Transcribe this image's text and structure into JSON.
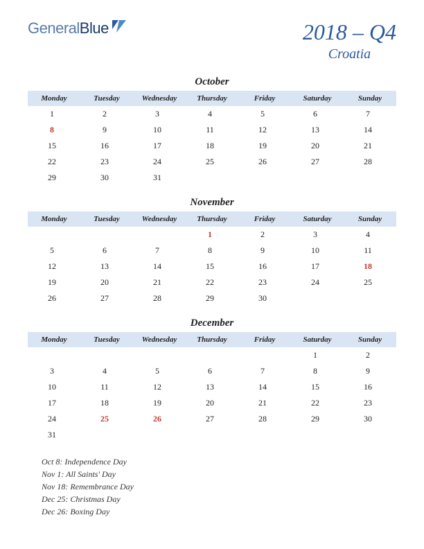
{
  "logo": {
    "part1": "General",
    "part2": "Blue"
  },
  "quarter": "2018 – Q4",
  "country": "Croatia",
  "colors": {
    "header_bg": "#dae5f3",
    "accent": "#2c5a9c",
    "holiday": "#c0392b",
    "text": "#222222",
    "background": "#ffffff"
  },
  "day_headers": [
    "Monday",
    "Tuesday",
    "Wednesday",
    "Thursday",
    "Friday",
    "Saturday",
    "Sunday"
  ],
  "months": [
    {
      "name": "October",
      "weeks": [
        [
          {
            "d": "1"
          },
          {
            "d": "2"
          },
          {
            "d": "3"
          },
          {
            "d": "4"
          },
          {
            "d": "5"
          },
          {
            "d": "6"
          },
          {
            "d": "7"
          }
        ],
        [
          {
            "d": "8",
            "h": true
          },
          {
            "d": "9"
          },
          {
            "d": "10"
          },
          {
            "d": "11"
          },
          {
            "d": "12"
          },
          {
            "d": "13"
          },
          {
            "d": "14"
          }
        ],
        [
          {
            "d": "15"
          },
          {
            "d": "16"
          },
          {
            "d": "17"
          },
          {
            "d": "18"
          },
          {
            "d": "19"
          },
          {
            "d": "20"
          },
          {
            "d": "21"
          }
        ],
        [
          {
            "d": "22"
          },
          {
            "d": "23"
          },
          {
            "d": "24"
          },
          {
            "d": "25"
          },
          {
            "d": "26"
          },
          {
            "d": "27"
          },
          {
            "d": "28"
          }
        ],
        [
          {
            "d": "29"
          },
          {
            "d": "30"
          },
          {
            "d": "31"
          },
          {
            "d": ""
          },
          {
            "d": ""
          },
          {
            "d": ""
          },
          {
            "d": ""
          }
        ]
      ]
    },
    {
      "name": "November",
      "weeks": [
        [
          {
            "d": ""
          },
          {
            "d": ""
          },
          {
            "d": ""
          },
          {
            "d": "1",
            "h": true
          },
          {
            "d": "2"
          },
          {
            "d": "3"
          },
          {
            "d": "4"
          }
        ],
        [
          {
            "d": "5"
          },
          {
            "d": "6"
          },
          {
            "d": "7"
          },
          {
            "d": "8"
          },
          {
            "d": "9"
          },
          {
            "d": "10"
          },
          {
            "d": "11"
          }
        ],
        [
          {
            "d": "12"
          },
          {
            "d": "13"
          },
          {
            "d": "14"
          },
          {
            "d": "15"
          },
          {
            "d": "16"
          },
          {
            "d": "17"
          },
          {
            "d": "18",
            "h": true
          }
        ],
        [
          {
            "d": "19"
          },
          {
            "d": "20"
          },
          {
            "d": "21"
          },
          {
            "d": "22"
          },
          {
            "d": "23"
          },
          {
            "d": "24"
          },
          {
            "d": "25"
          }
        ],
        [
          {
            "d": "26"
          },
          {
            "d": "27"
          },
          {
            "d": "28"
          },
          {
            "d": "29"
          },
          {
            "d": "30"
          },
          {
            "d": ""
          },
          {
            "d": ""
          }
        ]
      ]
    },
    {
      "name": "December",
      "weeks": [
        [
          {
            "d": ""
          },
          {
            "d": ""
          },
          {
            "d": ""
          },
          {
            "d": ""
          },
          {
            "d": ""
          },
          {
            "d": "1"
          },
          {
            "d": "2"
          }
        ],
        [
          {
            "d": "3"
          },
          {
            "d": "4"
          },
          {
            "d": "5"
          },
          {
            "d": "6"
          },
          {
            "d": "7"
          },
          {
            "d": "8"
          },
          {
            "d": "9"
          }
        ],
        [
          {
            "d": "10"
          },
          {
            "d": "11"
          },
          {
            "d": "12"
          },
          {
            "d": "13"
          },
          {
            "d": "14"
          },
          {
            "d": "15"
          },
          {
            "d": "16"
          }
        ],
        [
          {
            "d": "17"
          },
          {
            "d": "18"
          },
          {
            "d": "19"
          },
          {
            "d": "20"
          },
          {
            "d": "21"
          },
          {
            "d": "22"
          },
          {
            "d": "23"
          }
        ],
        [
          {
            "d": "24"
          },
          {
            "d": "25",
            "h": true
          },
          {
            "d": "26",
            "h": true
          },
          {
            "d": "27"
          },
          {
            "d": "28"
          },
          {
            "d": "29"
          },
          {
            "d": "30"
          }
        ],
        [
          {
            "d": "31"
          },
          {
            "d": ""
          },
          {
            "d": ""
          },
          {
            "d": ""
          },
          {
            "d": ""
          },
          {
            "d": ""
          },
          {
            "d": ""
          }
        ]
      ]
    }
  ],
  "holidays": [
    "Oct 8: Independence Day",
    "Nov 1: All Saints' Day",
    "Nov 18: Remembrance Day",
    "Dec 25: Christmas Day",
    "Dec 26: Boxing Day"
  ]
}
